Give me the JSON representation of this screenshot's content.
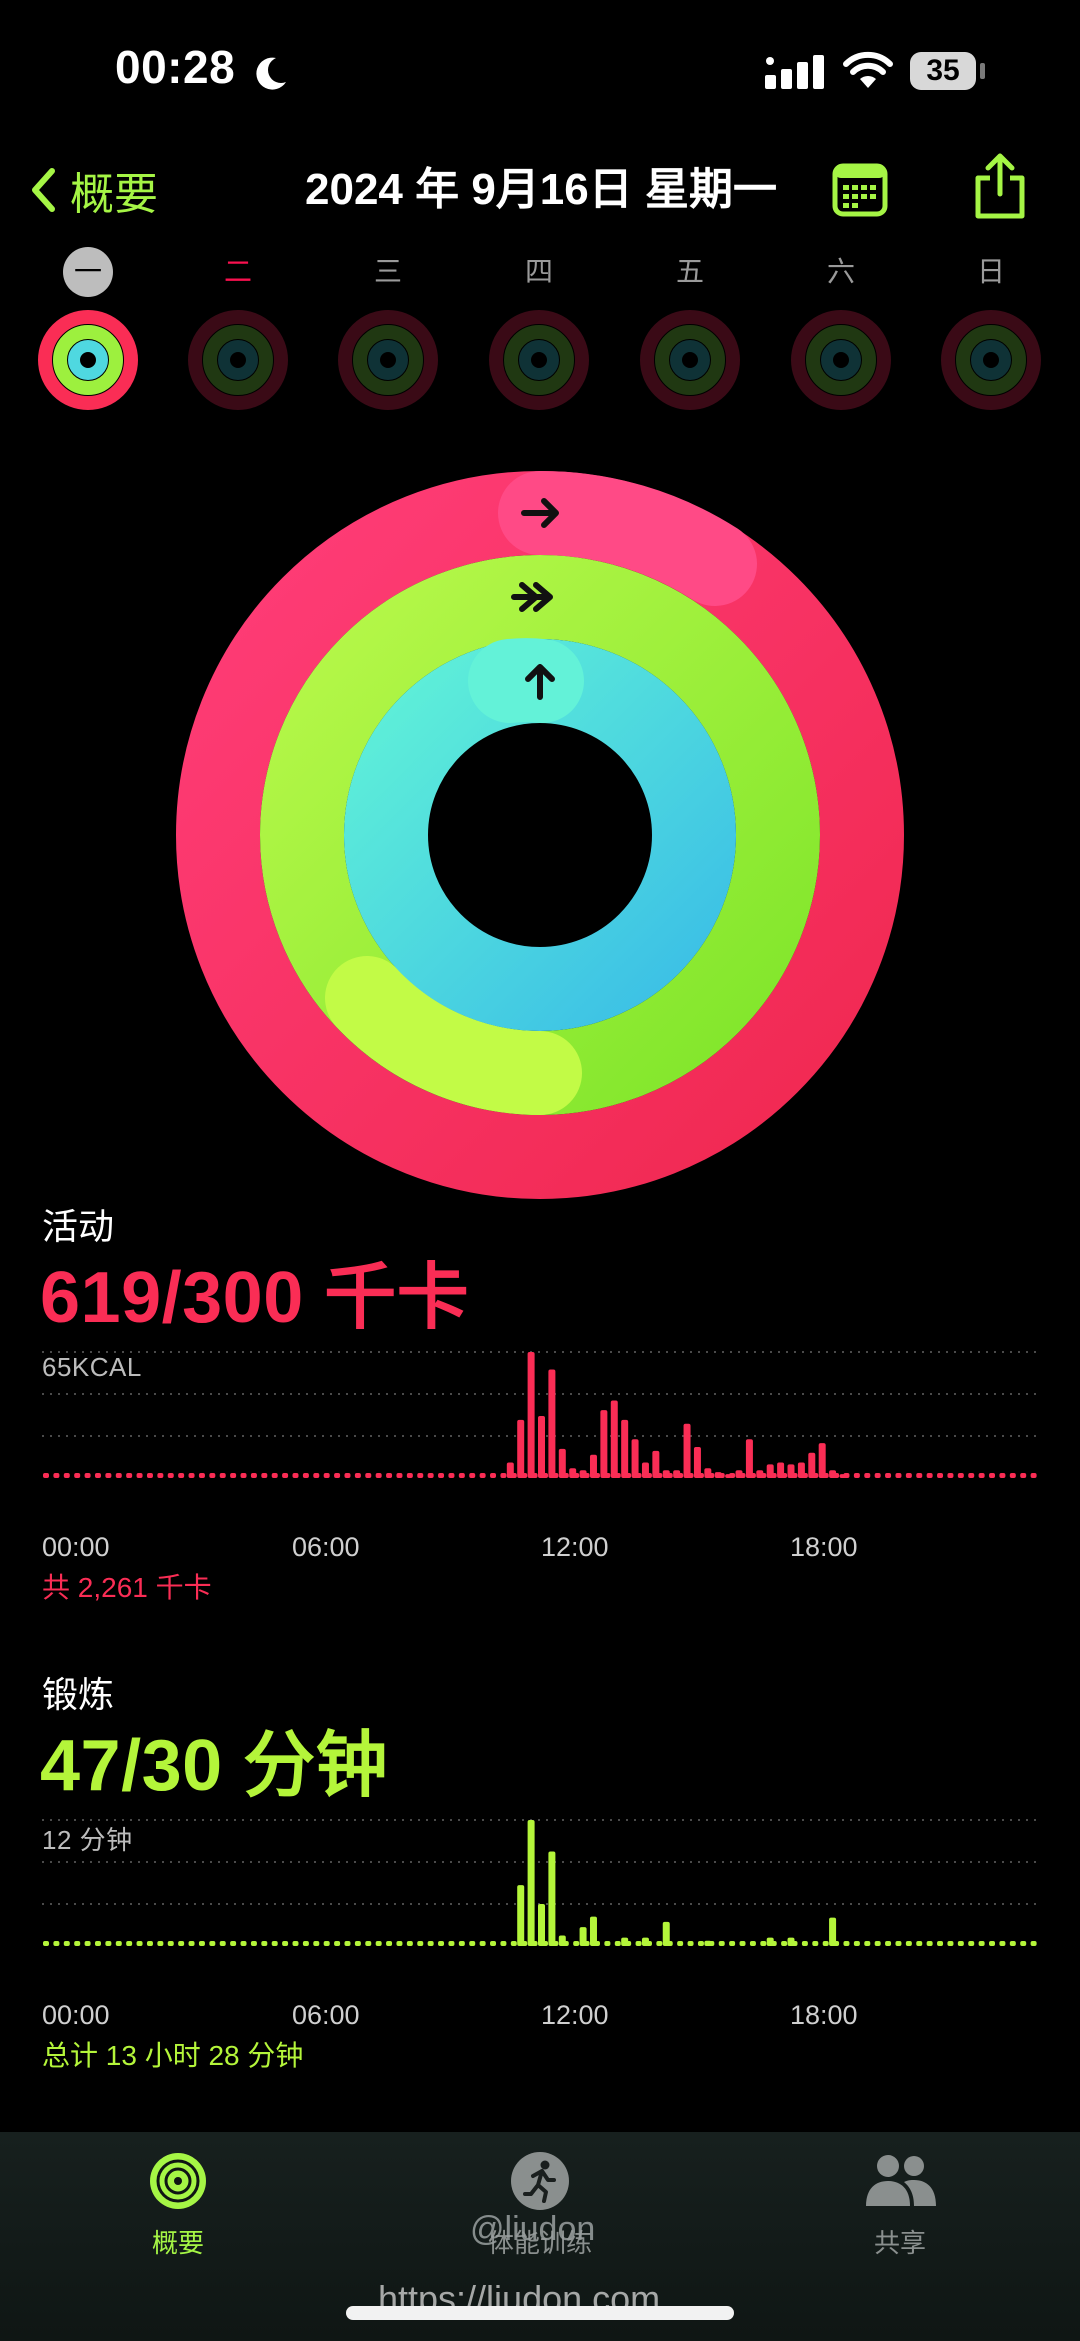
{
  "status_bar": {
    "time": "00:28",
    "battery": "35"
  },
  "header": {
    "back_label": "概要",
    "date_title": "2024 年 9月16日 星期一"
  },
  "week": {
    "days": [
      "一",
      "二",
      "三",
      "四",
      "五",
      "六",
      "日"
    ],
    "selected_index": 0
  },
  "rings": {
    "move_progress": 2.063,
    "exercise_progress": 1.567,
    "stand_progress": 1.0
  },
  "move": {
    "label": "活动",
    "value": "619/300 千卡",
    "scale_label": "65KCAL",
    "total": "共 2,261 千卡",
    "time_labels": [
      "00:00",
      "06:00",
      "12:00",
      "18:00"
    ]
  },
  "exercise": {
    "label": "锻炼",
    "value": "47/30 分钟",
    "scale_label": "12 分钟",
    "total": "总计 13 小时 28 分钟",
    "time_labels": [
      "00:00",
      "06:00",
      "12:00",
      "18:00"
    ]
  },
  "tabs": [
    {
      "label": "概要",
      "icon": "rings-icon",
      "active": true
    },
    {
      "label": "体能训练",
      "icon": "runner-icon",
      "active": false
    },
    {
      "label": "共享",
      "icon": "people-icon",
      "active": false
    }
  ],
  "watermarks": [
    "@liudon",
    "https://liudon.com"
  ],
  "colors": {
    "move": "#fa2d55",
    "exercise": "#b4f53a",
    "stand": "#4fd8e0",
    "accent": "#a5f545"
  },
  "chart_data": [
    {
      "type": "bar",
      "name": "move-hourly",
      "x_unit": "hour",
      "ylim": [
        0,
        65
      ],
      "x_ticks": [
        "00:00",
        "06:00",
        "12:00",
        "18:00"
      ],
      "x": [
        11.25,
        11.5,
        11.75,
        12.0,
        12.25,
        12.5,
        12.75,
        13.0,
        13.25,
        13.5,
        13.75,
        14.0,
        14.25,
        14.5,
        14.75,
        15.0,
        15.25,
        15.5,
        15.75,
        16.0,
        16.25,
        16.5,
        16.75,
        17.0,
        17.25,
        17.5,
        17.75,
        18.0,
        18.25,
        18.5,
        18.75,
        19.0,
        19.25
      ],
      "values": [
        8,
        30,
        65,
        32,
        56,
        15,
        5,
        4,
        12,
        35,
        40,
        30,
        20,
        8,
        14,
        4,
        4,
        28,
        16,
        5,
        3,
        2,
        4,
        20,
        4,
        7,
        8,
        7,
        8,
        13,
        18,
        4,
        2
      ]
    },
    {
      "type": "bar",
      "name": "exercise-hourly",
      "x_unit": "hour",
      "ylim": [
        0,
        12
      ],
      "x_ticks": [
        "00:00",
        "06:00",
        "12:00",
        "18:00"
      ],
      "x": [
        11.5,
        11.75,
        12.0,
        12.25,
        12.5,
        13.0,
        13.25,
        14.0,
        14.5,
        15.0,
        16.0,
        17.5,
        18.0,
        19.0
      ],
      "values": [
        5.8,
        12,
        4,
        9,
        1,
        1.8,
        2.8,
        0.8,
        0.8,
        2.3,
        0.5,
        0.8,
        0.8,
        2.7
      ]
    }
  ]
}
